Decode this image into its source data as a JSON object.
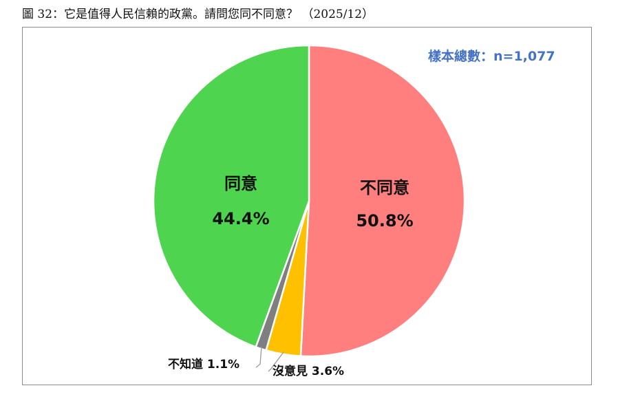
{
  "figure_title": "圖 32：它是值得人民信賴的政黨。請問您同不同意？ （2025/12）",
  "sample_note": "樣本總數：n=1,077",
  "colors": {
    "disagree": "#ff7f7f",
    "no_opinion": "#ffc000",
    "dont_know": "#7f7f7f",
    "agree": "#4ed44e",
    "note": "#4472c4",
    "frame": "#8a8a8a"
  },
  "chart_data": {
    "type": "pie",
    "title": "圖 32：它是值得人民信賴的政黨。請問您同不同意？ （2025/12）",
    "start": "12 o'clock, clockwise",
    "slices": [
      {
        "key": "disagree",
        "label": "不同意",
        "value": 50.8,
        "value_text": "50.8%",
        "color": "#ff7f7f",
        "label_position": "inside"
      },
      {
        "key": "no_opinion",
        "label": "沒意見",
        "value": 3.6,
        "value_text": "3.6%",
        "color": "#ffc000",
        "label_position": "outside"
      },
      {
        "key": "dont_know",
        "label": "不知道",
        "value": 1.1,
        "value_text": "1.1%",
        "color": "#7f7f7f",
        "label_position": "outside"
      },
      {
        "key": "agree",
        "label": "同意",
        "value": 44.4,
        "value_text": "44.4%",
        "color": "#4ed44e",
        "label_position": "inside"
      }
    ]
  }
}
